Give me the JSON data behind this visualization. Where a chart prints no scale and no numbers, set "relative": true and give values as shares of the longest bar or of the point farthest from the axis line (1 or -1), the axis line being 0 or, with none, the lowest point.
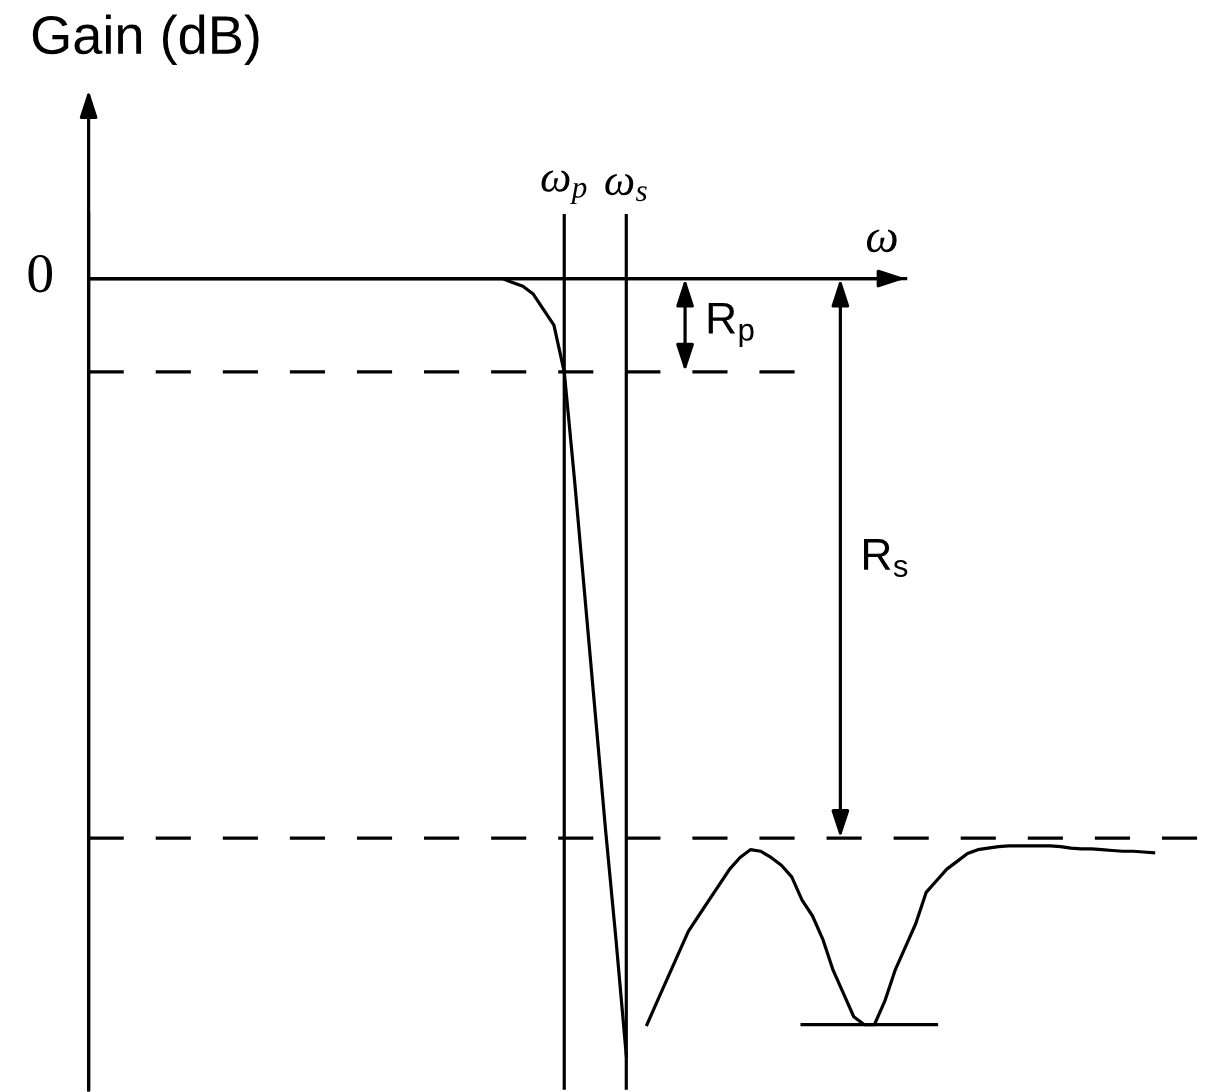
{
  "chart_data": {
    "type": "line",
    "relative": true,
    "ylabel": "Gain (dB)",
    "xlabel": "ω",
    "tick_labels": "x",
    "grid": "x",
    "categories": [
      null,
      null,
      null,
      null,
      null,
      null,
      null,
      null,
      null,
      null,
      null,
      null,
      null,
      null,
      null,
      null,
      null,
      null,
      null,
      null,
      null,
      null,
      null,
      null,
      null,
      null,
      null,
      null,
      null,
      null,
      null,
      null,
      null,
      null,
      null,
      null,
      null,
      null,
      null,
      null,
      null,
      null,
      null,
      null,
      null,
      null,
      "ω$_{p}$",
      null,
      null,
      null,
      null,
      null,
      "ω$_{s}$",
      null,
      null,
      null,
      null,
      null,
      null,
      null,
      null,
      null,
      null,
      null,
      null,
      null,
      null,
      null,
      null,
      null,
      null,
      null,
      null,
      null,
      null,
      null,
      null,
      null,
      null,
      null,
      null,
      null,
      null,
      null,
      null,
      null,
      null,
      null,
      null,
      null,
      null,
      null,
      null,
      null,
      null,
      null,
      null,
      null,
      null,
      null,
      null,
      null,
      null,
      null
    ],
    "series": [
      {
        "color": "#000000",
        "values": [
          0,
          0,
          0,
          0,
          0,
          0,
          0,
          0,
          0,
          0,
          0,
          0,
          0,
          0,
          0,
          0,
          0,
          0,
          0,
          0,
          0,
          0,
          0,
          0,
          0,
          0,
          0,
          0,
          0,
          0,
          0,
          0,
          0,
          0,
          0,
          0,
          0,
          0,
          0,
          0,
          0,
          -0.005,
          -0.01,
          -0.02,
          -0.04,
          -0.06,
          -0.12,
          -0.26,
          -0.41,
          -0.56,
          -0.71,
          -0.85,
          -1,
          null,
          -0.96,
          -0.93,
          -0.9,
          -0.87,
          -0.84,
          -0.82,
          -0.8,
          -0.78,
          -0.76,
          -0.745,
          -0.735,
          -0.737,
          -0.745,
          -0.755,
          -0.77,
          -0.8,
          -0.82,
          -0.85,
          -0.89,
          -0.92,
          -0.95,
          -0.96,
          -0.96,
          -0.93,
          -0.89,
          -0.86,
          -0.83,
          -0.79,
          -0.775,
          -0.76,
          -0.75,
          -0.74,
          -0.735,
          -0.733,
          -0.731,
          -0.73,
          -0.73,
          -0.73,
          -0.73,
          -0.73,
          -0.731,
          -0.733,
          -0.734,
          -0.734,
          -0.735,
          -0.736,
          -0.737,
          -0.737,
          -0.738,
          -0.739
        ]
      },
      {
        "color": "#000000",
        "values": [
          null,
          null,
          null,
          null,
          null,
          null,
          null,
          null,
          null,
          null,
          null,
          null,
          null,
          null,
          null,
          null,
          null,
          null,
          null,
          null,
          null,
          null,
          null,
          null,
          null,
          null,
          null,
          null,
          null,
          null,
          null,
          null,
          null,
          null,
          null,
          null,
          null,
          null,
          null,
          null,
          null,
          null,
          null,
          null,
          null,
          null,
          null,
          null,
          null,
          null,
          null,
          null,
          null,
          null,
          null,
          null,
          null,
          null,
          null,
          null,
          null,
          null,
          null,
          null,
          null,
          null,
          null,
          null,
          null,
          -0.96,
          -0.96,
          -0.96,
          -0.96,
          -0.96,
          -0.96,
          -0.96,
          -0.96,
          -0.96,
          -0.96,
          -0.96,
          -0.96,
          -0.96,
          -0.96,
          null,
          null,
          null,
          null,
          null,
          null,
          null,
          null,
          null,
          null,
          null,
          null,
          null,
          null,
          null,
          null,
          null,
          null,
          null,
          null,
          null
        ]
      }
    ],
    "ref_lines": [
      {
        "axis": "y",
        "value": -0.12,
        "line_style": "dashed",
        "color": "#000000"
      },
      {
        "axis": "y",
        "value": -0.72,
        "line_style": "dashed",
        "color": "#000000"
      }
    ],
    "annotations": [
      "0",
      "R$_{p}$",
      "R$_{s}$"
    ]
  }
}
